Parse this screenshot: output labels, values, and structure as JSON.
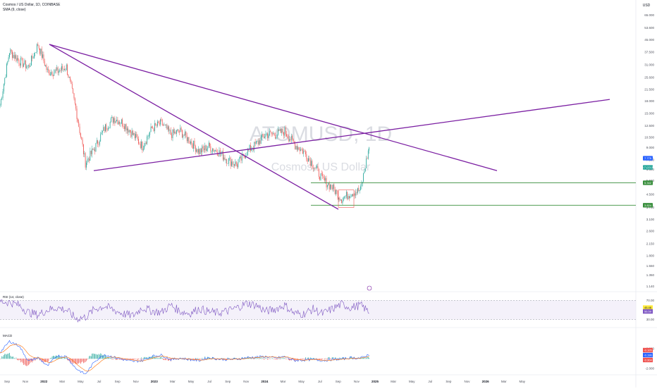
{
  "symbol": {
    "title": "Cosmos / US Dollar, 1D, COINBASE",
    "indicator": "SMA (9, close)",
    "watermark_ticker": "ATOMUSD, 1D",
    "watermark_name": "Cosmos / US Dollar"
  },
  "price_axis": {
    "currency": "USD",
    "ticks": [
      "78.000",
      "65.000",
      "53.600",
      "45.000",
      "37.500",
      "31.000",
      "25.600",
      "21.500",
      "18.000",
      "15.000",
      "12.500",
      "10.500",
      "9.000",
      "7.500",
      "6.500",
      "5.500",
      "4.500",
      "3.700",
      "3.100",
      "2.600",
      "2.150",
      "1.800",
      "1.550",
      "1.350",
      "1.140"
    ],
    "badges": {
      "sma": "7.775",
      "last": "6.7 (13.2)",
      "support_1": "5.342",
      "support_2": "3.824"
    }
  },
  "time_axis": {
    "labels": [
      "Sep",
      "Nov",
      "2022",
      "Mar",
      "May",
      "Jul",
      "Sep",
      "Nov",
      "2023",
      "Mar",
      "May",
      "Jul",
      "Sep",
      "Nov",
      "2024",
      "Mar",
      "May",
      "Jul",
      "Sep",
      "Nov",
      "2025",
      "Mar",
      "May",
      "Jul",
      "Sep",
      "Nov",
      "2026",
      "Mar",
      "May"
    ],
    "bold": [
      "2022",
      "2023",
      "2024",
      "2025",
      "2026"
    ]
  },
  "rsi": {
    "title": "RSI (14, close)",
    "ticks": [
      "70.00",
      "30.00"
    ],
    "badges": {
      "rsi": "45.46",
      "ma": "56.59"
    }
  },
  "macd": {
    "title": "MACD",
    "ticks": [
      "2.000",
      "-2.000"
    ],
    "badges": {
      "a": "-0.105",
      "b": "-0.196",
      "c": "-0.304"
    }
  },
  "colors": {
    "up": "#26a69a",
    "down": "#ef5350",
    "trendline": "#7b1fa2",
    "support": "#388e3c",
    "rsi_line": "#7e57c2",
    "rsi_band": "#ede7f6",
    "sma_badge": "#2962ff"
  },
  "chart_data": [
    {
      "type": "line",
      "title": "Cosmos / US Dollar, 1D, COINBASE",
      "ylabel": "USD",
      "scale": "log",
      "ylim": [
        1.1,
        78
      ],
      "x": [
        "2021-09",
        "2021-10",
        "2021-11",
        "2021-12",
        "2022-01",
        "2022-02",
        "2022-03",
        "2022-04",
        "2022-05",
        "2022-06",
        "2022-07",
        "2022-08",
        "2022-09",
        "2022-10",
        "2022-11",
        "2022-12",
        "2023-01",
        "2023-02",
        "2023-03",
        "2023-04",
        "2023-05",
        "2023-06",
        "2023-07",
        "2023-08",
        "2023-09",
        "2023-10",
        "2023-11",
        "2023-12",
        "2024-01",
        "2024-02",
        "2024-03",
        "2024-04",
        "2024-05",
        "2024-06",
        "2024-07",
        "2024-08",
        "2024-09",
        "2024-10",
        "2024-11",
        "2024-12"
      ],
      "series": [
        {
          "values": [
            17,
            38,
            33,
            30,
            42,
            28,
            28,
            30,
            16,
            7.2,
            9,
            12,
            14,
            13,
            11,
            9.2,
            12,
            13,
            11,
            11.5,
            10,
            8.5,
            9.2,
            8.5,
            7.5,
            7,
            8.5,
            9.5,
            11,
            11,
            11.5,
            9.5,
            8.5,
            7.0,
            5.6,
            5.0,
            4.2,
            4.6,
            4.8,
            9.8
          ]
        }
      ],
      "horizontal_levels": [
        5.342,
        3.824
      ]
    },
    {
      "type": "line",
      "title": "RSI (14, close)",
      "ylim": [
        0,
        100
      ],
      "series": [
        {
          "values": [
            68,
            66,
            60,
            45,
            40,
            50,
            55,
            50,
            32,
            35,
            52,
            58,
            50,
            42,
            38,
            55,
            48,
            45,
            60,
            47,
            43,
            53,
            46,
            44,
            48,
            55,
            64,
            60,
            47,
            52,
            60,
            43,
            42,
            52,
            42,
            52,
            62,
            55,
            60,
            44
          ]
        }
      ]
    },
    {
      "type": "line",
      "title": "MACD",
      "series": [
        {
          "values": [
            1.2,
            3.5,
            2.6,
            -0.5,
            0.2,
            -1.5,
            0.6,
            0.4,
            -2.0,
            -3.2,
            -0.5,
            0.8,
            0.3,
            -0.2,
            -0.6,
            -0.4,
            0.5,
            0.7,
            -0.2,
            0.1,
            -0.2,
            -0.4,
            0.2,
            -0.1,
            -0.2,
            -0.1,
            0.2,
            0.3,
            0.4,
            0.1,
            0.4,
            -0.4,
            -0.3,
            -0.2,
            -0.4,
            -0.2,
            -0.1,
            0.2,
            0.1,
            0.9
          ]
        }
      ]
    }
  ]
}
